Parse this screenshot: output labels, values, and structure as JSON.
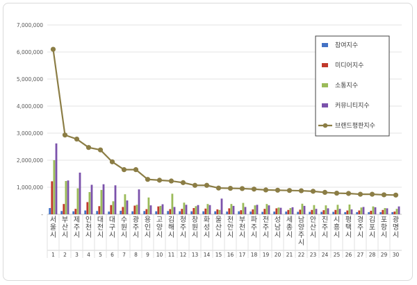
{
  "chart_data": {
    "type": "bar",
    "title": "",
    "xlabel": "",
    "ylabel": "",
    "ylim": [
      0,
      7000000
    ],
    "yticks": [
      "-",
      "1,000,000",
      "2,000,000",
      "3,000,000",
      "4,000,000",
      "5,000,000",
      "6,000,000",
      "7,000,000"
    ],
    "grid": true,
    "legend_position": "right",
    "categories": [
      "서울시",
      "부산시",
      "제주시",
      "인천시",
      "대전시",
      "대구시",
      "수원시",
      "광주시",
      "용인시",
      "고양시",
      "김해시",
      "청주시",
      "창원시",
      "화성시",
      "울산시",
      "천안시",
      "부천시",
      "파주시",
      "전주시",
      "성남시",
      "세종시",
      "남양주시",
      "안산시",
      "진주시",
      "시흥시",
      "평택시",
      "경주시",
      "김포시",
      "포항시",
      "광명시"
    ],
    "numbers": [
      "1",
      "2",
      "3",
      "4",
      "5",
      "6",
      "7",
      "8",
      "9",
      "10",
      "11",
      "12",
      "13",
      "14",
      "15",
      "16",
      "17",
      "18",
      "19",
      "20",
      "21",
      "22",
      "23",
      "24",
      "25",
      "26",
      "27",
      "28",
      "29",
      "30"
    ],
    "series": [
      {
        "name": "참여지수",
        "kind": "bar",
        "color": "#4472c4",
        "values": [
          230000,
          120000,
          110000,
          140000,
          120000,
          100000,
          130000,
          110000,
          120000,
          110000,
          120000,
          110000,
          110000,
          110000,
          110000,
          100000,
          110000,
          100000,
          90000,
          100000,
          100000,
          90000,
          90000,
          90000,
          90000,
          80000,
          80000,
          80000,
          80000,
          80000
        ]
      },
      {
        "name": "미디어지수",
        "kind": "bar",
        "color": "#c0392b",
        "values": [
          1220000,
          380000,
          200000,
          450000,
          300000,
          340000,
          270000,
          320000,
          190000,
          290000,
          190000,
          200000,
          230000,
          210000,
          180000,
          220000,
          150000,
          180000,
          200000,
          220000,
          160000,
          170000,
          160000,
          150000,
          160000,
          140000,
          140000,
          130000,
          160000,
          100000
        ]
      },
      {
        "name": "소통지수",
        "kind": "bar",
        "color": "#9bbb59",
        "values": [
          2000000,
          1230000,
          960000,
          820000,
          900000,
          480000,
          740000,
          350000,
          620000,
          310000,
          760000,
          430000,
          300000,
          380000,
          160000,
          380000,
          420000,
          330000,
          380000,
          250000,
          230000,
          390000,
          340000,
          330000,
          350000,
          360000,
          250000,
          290000,
          230000,
          200000
        ]
      },
      {
        "name": "커뮤니티지수",
        "kind": "bar",
        "color": "#7b52ab",
        "values": [
          2620000,
          1250000,
          1540000,
          1090000,
          1110000,
          1070000,
          510000,
          920000,
          330000,
          370000,
          270000,
          350000,
          340000,
          340000,
          580000,
          310000,
          270000,
          350000,
          330000,
          240000,
          260000,
          310000,
          200000,
          220000,
          200000,
          180000,
          270000,
          260000,
          220000,
          290000
        ]
      },
      {
        "name": "브랜드평판지수",
        "kind": "line",
        "color": "#8b7d45",
        "values": [
          6100000,
          2930000,
          2780000,
          2470000,
          2380000,
          1940000,
          1650000,
          1650000,
          1290000,
          1260000,
          1230000,
          1170000,
          1070000,
          1070000,
          970000,
          960000,
          950000,
          930000,
          900000,
          890000,
          880000,
          870000,
          850000,
          810000,
          780000,
          770000,
          740000,
          740000,
          720000,
          710000
        ]
      }
    ]
  }
}
